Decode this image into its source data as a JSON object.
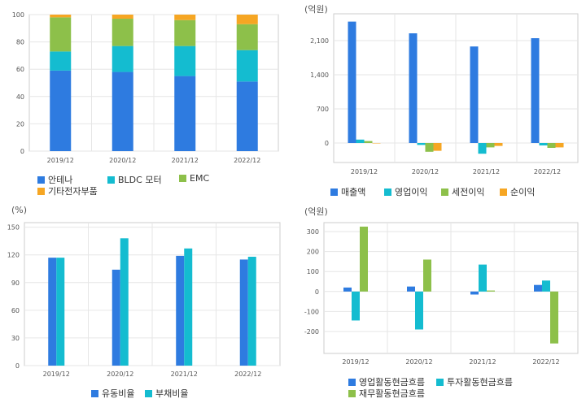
{
  "colors": {
    "blue": "#2e7be0",
    "cyan": "#14bcd0",
    "green": "#8dc04a",
    "orange": "#f6a623",
    "grid": "#e6e6e6",
    "axis": "#cccccc",
    "tick_text": "#555555"
  },
  "chart_data": [
    {
      "id": "sales_mix",
      "type": "bar",
      "stacked": true,
      "unit": "",
      "categories": [
        "2019/12",
        "2020/12",
        "2021/12",
        "2022/12"
      ],
      "series": [
        {
          "name": "안테나",
          "color": "#2e7be0",
          "values": [
            59,
            58,
            55,
            51
          ]
        },
        {
          "name": "BLDC 모터",
          "color": "#14bcd0",
          "values": [
            14,
            19,
            22,
            23
          ]
        },
        {
          "name": "EMC",
          "color": "#8dc04a",
          "values": [
            25,
            20,
            19,
            19
          ]
        },
        {
          "name": "기타전자부품",
          "color": "#f6a623",
          "values": [
            2,
            3,
            4,
            7
          ]
        }
      ],
      "ylim": [
        0,
        100
      ],
      "yticks": [
        0,
        20,
        40,
        60,
        80,
        100
      ],
      "grid": true,
      "legend_position": "bottom"
    },
    {
      "id": "income",
      "type": "bar",
      "unit": "(억원)",
      "categories": [
        "2019/12",
        "2020/12",
        "2021/12",
        "2022/12"
      ],
      "series": [
        {
          "name": "매출액",
          "color": "#2e7be0",
          "values": [
            2490,
            2250,
            1980,
            2150
          ]
        },
        {
          "name": "영업이익",
          "color": "#14bcd0",
          "values": [
            70,
            -40,
            -220,
            -50
          ]
        },
        {
          "name": "세전이익",
          "color": "#8dc04a",
          "values": [
            40,
            -180,
            -90,
            -100
          ]
        },
        {
          "name": "순이익",
          "color": "#f6a623",
          "values": [
            0,
            -160,
            -60,
            -90
          ]
        }
      ],
      "ylim": [
        -400,
        2650
      ],
      "yticks": [
        0,
        700,
        1400,
        2100
      ],
      "ytick_labels": [
        "0",
        "700",
        "1,400",
        "2,100"
      ],
      "grid": true,
      "legend_position": "bottom"
    },
    {
      "id": "ratios",
      "type": "bar",
      "unit": "(%)",
      "categories": [
        "2019/12",
        "2020/12",
        "2021/12",
        "2022/12"
      ],
      "series": [
        {
          "name": "유동비율",
          "color": "#2e7be0",
          "values": [
            117,
            104,
            119,
            115
          ]
        },
        {
          "name": "부채비율",
          "color": "#14bcd0",
          "values": [
            117,
            138,
            127,
            118
          ]
        }
      ],
      "ylim": [
        0,
        155
      ],
      "yticks": [
        0,
        30,
        60,
        90,
        120,
        150
      ],
      "grid": true,
      "legend_position": "bottom"
    },
    {
      "id": "cashflow",
      "type": "bar",
      "unit": "(억원)",
      "categories": [
        "2019/12",
        "2020/12",
        "2021/12",
        "2022/12"
      ],
      "series": [
        {
          "name": "영업활동현금흐름",
          "color": "#2e7be0",
          "values": [
            20,
            25,
            -15,
            33
          ]
        },
        {
          "name": "투자활동현금흐름",
          "color": "#14bcd0",
          "values": [
            -145,
            -190,
            135,
            55
          ]
        },
        {
          "name": "재무활동현금흐름",
          "color": "#8dc04a",
          "values": [
            325,
            160,
            5,
            -260
          ]
        }
      ],
      "ylim": [
        -310,
        345
      ],
      "yticks": [
        -200,
        -100,
        0,
        100,
        200,
        300
      ],
      "grid": true,
      "legend_position": "bottom"
    }
  ]
}
